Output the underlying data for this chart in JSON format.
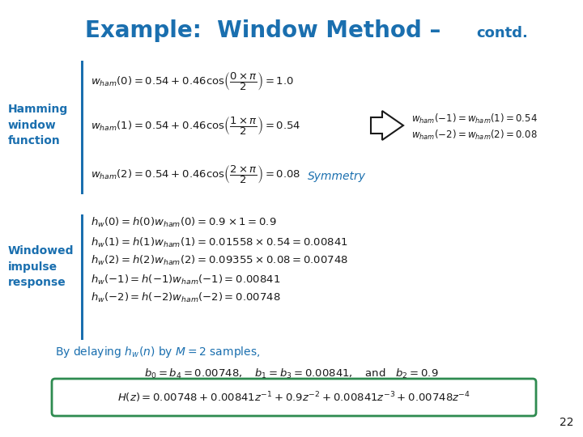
{
  "title_main": "Example:  Window Method –",
  "title_contd": "contd.",
  "title_color": "#1a6faf",
  "title_fontsize": 20,
  "title_contd_fontsize": 13,
  "bg_color": "#ffffff",
  "label_color": "#1a6faf",
  "math_color": "#1a1a1a",
  "symmetry_color": "#1a6faf",
  "box_color": "#2e8b50",
  "page_number": "22",
  "hamming_label": "Hamming\nwindow\nfunction",
  "windowed_label": "Windowed\nimpulse\nresponse",
  "delaying_text_normal": "By delaying ",
  "delaying_text_italic": "$h_w(n)$",
  "delaying_text_rest": " by $M = 2$ samples,",
  "ham0": "$w_{ham}(0) = 0.54 + 0.46\\cos\\!\\left(\\dfrac{0 \\times \\pi}{2}\\right) = 1.0$",
  "ham1": "$w_{ham}(1) = 0.54 + 0.46\\cos\\!\\left(\\dfrac{1 \\times \\pi}{2}\\right) = 0.54$",
  "ham2": "$w_{ham}(2) = 0.54 + 0.46\\cos\\!\\left(\\dfrac{2 \\times \\pi}{2}\\right) = 0.08$",
  "sym1": "$w_{ham}(-1) = w_{ham}(1) = 0.54$",
  "sym2": "$w_{ham}(-2) = w_{ham}(2) = 0.08$",
  "symmetry_label": "Symmetry",
  "hw0": "$h_w(0) = h(0)w_{ham}(0) = 0.9 \\times 1 = 0.9$",
  "hw1": "$h_w(1) = h(1)w_{ham}(1) = 0.01558 \\times 0.54 = 0.00841$",
  "hw2": "$h_w(2) = h(2)w_{ham}(2) = 0.09355 \\times 0.08 = 0.00748$",
  "hwm1": "$h_w(-1) = h(-1)w_{ham}(-1) = 0.00841$",
  "hwm2": "$h_w(-2) = h(-2)w_{ham}(-2) = 0.00748$",
  "b_eq": "$b_0 = b_4 = 0.00748,\\quad b_1 = b_3 = 0.00841, \\quad \\text{and}\\quad b_2 = 0.9$",
  "Hz_eq": "$H(z) = 0.00748 + 0.00841z^{-1} + 0.9z^{-2} + 0.00841z^{-3} + 0.00748z^{-4}$"
}
